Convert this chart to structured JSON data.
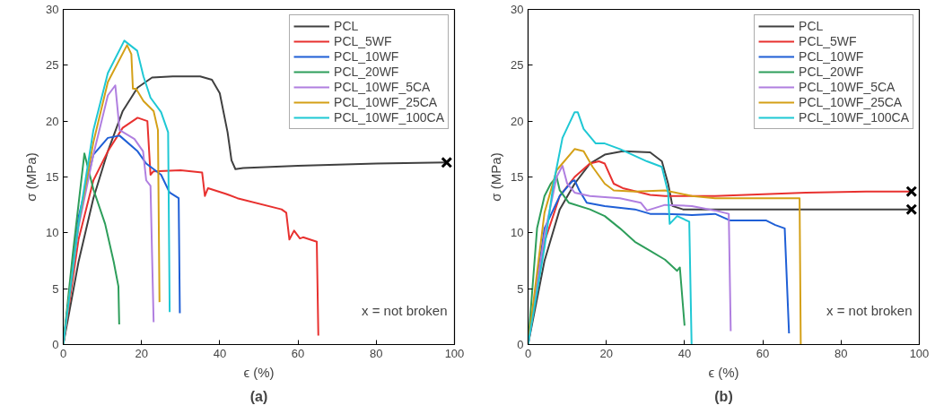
{
  "chart_data": [
    {
      "type": "line",
      "title": "(a)",
      "xlabel": "ϵ (%)",
      "ylabel": "σ (MPa)",
      "xlim": [
        0,
        100
      ],
      "ylim": [
        0,
        30
      ],
      "xticks": [
        0,
        20,
        40,
        60,
        80,
        100
      ],
      "yticks": [
        0,
        5,
        10,
        15,
        20,
        25,
        30
      ],
      "grid": false,
      "legend": "top right",
      "annotations": [
        "x = not broken"
      ],
      "series": [
        {
          "name": "PCL",
          "color": "#404040",
          "x": [
            0,
            3.9,
            7.7,
            11.4,
            15.2,
            19,
            22.7,
            28,
            35,
            38,
            40,
            42,
            43,
            44,
            46,
            60,
            80,
            98
          ],
          "values": [
            0,
            7.4,
            13.1,
            17.3,
            20.9,
            23.0,
            23.9,
            24,
            24,
            23.7,
            22.5,
            19,
            16.5,
            15.7,
            15.8,
            16,
            16.2,
            16.3
          ]
        },
        {
          "name": "PCL_5WF",
          "color": "#e8312f",
          "x": [
            0,
            3.9,
            7.7,
            11.4,
            15.2,
            19,
            21.5,
            22.3,
            23,
            30,
            35.5,
            36.2,
            37,
            41.5,
            44.5,
            55.8,
            57,
            57.8,
            59,
            60.5,
            61.3,
            64.8,
            65.2
          ],
          "values": [
            0,
            9.4,
            14.7,
            17.3,
            19.4,
            20.3,
            20.0,
            15.2,
            15.5,
            15.6,
            15.4,
            13.3,
            14.0,
            13.5,
            13.1,
            12.1,
            11.8,
            9.4,
            10.2,
            9.5,
            9.6,
            9.2,
            0.8
          ]
        },
        {
          "name": "PCL_10WF",
          "color": "#1f5fd6",
          "x": [
            0,
            3.9,
            7.7,
            11.4,
            14.4,
            19,
            21.2,
            25,
            27.2,
            29.5,
            29.8
          ],
          "values": [
            0,
            11.4,
            17,
            18.5,
            18.7,
            17.3,
            16.2,
            15.2,
            13.6,
            13.1,
            2.8
          ]
        },
        {
          "name": "PCL_20WF",
          "color": "#2e9e5b",
          "x": [
            0,
            2.4,
            5.4,
            7.7,
            10.7,
            12.9,
            14.1,
            14.3
          ],
          "values": [
            0,
            8,
            17.1,
            13.9,
            10.8,
            7.4,
            5.2,
            1.8
          ]
        },
        {
          "name": "PCL_10WF_5CA",
          "color": "#b07fe0",
          "x": [
            0,
            3.9,
            7.7,
            11.4,
            13.3,
            14.4,
            18.2,
            20.4,
            21.2,
            22.3,
            22.7,
            23.1
          ],
          "values": [
            0,
            10.5,
            17,
            22.3,
            23.2,
            19.2,
            18.4,
            17.3,
            14.7,
            14.2,
            8.0,
            2.0
          ]
        },
        {
          "name": "PCL_10WF_25CA",
          "color": "#d4a017",
          "x": [
            0,
            3.9,
            7.7,
            11.4,
            16.3,
            17.4,
            17.8,
            18.6,
            20.5,
            23.1,
            24.2,
            24.6
          ],
          "values": [
            0,
            10.8,
            18.1,
            23.5,
            26.8,
            26.0,
            22.9,
            22.9,
            21.8,
            20.9,
            19.2,
            3.8
          ]
        },
        {
          "name": "PCL_10WF_100CA",
          "color": "#1fc8d4",
          "x": [
            0,
            3.9,
            7.7,
            11.4,
            15.6,
            18.9,
            20.5,
            22.3,
            25,
            26.8,
            27.2
          ],
          "values": [
            0,
            10.8,
            19.2,
            24.3,
            27.2,
            26.3,
            24.0,
            22.1,
            20.8,
            19.0,
            2.9
          ]
        },
        {
          "type": "scatter",
          "marker": "cross",
          "color": "#000000",
          "x": [
            98
          ],
          "values": [
            16.3
          ]
        }
      ]
    },
    {
      "type": "line",
      "title": "(b)",
      "xlabel": "ϵ (%)",
      "ylabel": "σ (MPa)",
      "xlim": [
        0,
        100
      ],
      "ylim": [
        0,
        30
      ],
      "xticks": [
        0,
        20,
        40,
        60,
        80,
        100
      ],
      "yticks": [
        0,
        5,
        10,
        15,
        20,
        25,
        30
      ],
      "grid": false,
      "legend": "top right",
      "annotations": [
        "x = not broken"
      ],
      "series": [
        {
          "name": "PCL",
          "color": "#404040",
          "x": [
            0,
            4.2,
            8.1,
            11.9,
            15.8,
            19.6,
            24.2,
            31.2,
            34.2,
            35.8,
            36.9,
            39.6,
            98
          ],
          "values": [
            0,
            7.5,
            12.1,
            14.4,
            16.2,
            17.0,
            17.3,
            17.2,
            16.4,
            14.4,
            12.4,
            12.1,
            12.1
          ]
        },
        {
          "name": "PCL_5WF",
          "color": "#e8312f",
          "x": [
            0,
            4.2,
            8.1,
            11.9,
            15.8,
            18.1,
            19.6,
            21.9,
            24.2,
            31.2,
            35,
            41.9,
            47.8,
            71,
            86.4,
            98
          ],
          "values": [
            0,
            9.2,
            13.3,
            15.0,
            16.2,
            16.4,
            16.2,
            14.4,
            14.0,
            13.4,
            13.3,
            13.3,
            13.3,
            13.6,
            13.7,
            13.7
          ]
        },
        {
          "name": "PCL_10WF",
          "color": "#1f5fd6",
          "x": [
            0,
            4.2,
            8.1,
            11.2,
            11.9,
            13.1,
            15,
            19.6,
            27.3,
            31.2,
            35,
            41.9,
            47.8,
            51.7,
            60.9,
            63.2,
            65.6,
            66.7
          ],
          "values": [
            0,
            10.4,
            13.3,
            14.6,
            14.7,
            13.8,
            12.7,
            12.4,
            12.1,
            11.7,
            11.7,
            11.6,
            11.7,
            11.1,
            11.1,
            10.7,
            10.4,
            1.0
          ]
        },
        {
          "name": "PCL_20WF",
          "color": "#2e9e5b",
          "x": [
            0,
            2.3,
            4.2,
            5.8,
            7.3,
            8.1,
            10.4,
            15.8,
            19.6,
            23.5,
            27.3,
            31.2,
            35,
            38.1,
            38.8,
            40
          ],
          "values": [
            0,
            10.4,
            13.3,
            14.4,
            15.0,
            13.8,
            12.7,
            12.1,
            11.5,
            10.4,
            9.2,
            8.4,
            7.6,
            6.6,
            6.9,
            1.7
          ]
        },
        {
          "name": "PCL_10WF_5CA",
          "color": "#b07fe0",
          "x": [
            0,
            4.2,
            7.3,
            8.8,
            10,
            11.9,
            15.8,
            23.5,
            28.8,
            30.4,
            35,
            41.9,
            47.8,
            51.3,
            51.8
          ],
          "values": [
            0,
            9.8,
            15.0,
            16.0,
            14.4,
            13.6,
            13.3,
            13.1,
            12.7,
            12.0,
            12.5,
            12.4,
            12.0,
            11.7,
            1.2
          ]
        },
        {
          "name": "PCL_10WF_25CA",
          "color": "#d4a017",
          "x": [
            0,
            4.2,
            7.3,
            11.9,
            14.2,
            16.5,
            19.6,
            21.9,
            27.3,
            35,
            41.9,
            47.8,
            69.4,
            69.7
          ],
          "values": [
            0,
            11.8,
            15.6,
            17.5,
            17.3,
            15.9,
            14.4,
            13.8,
            13.7,
            13.8,
            13.3,
            13.1,
            13.1,
            0
          ]
        },
        {
          "name": "PCL_10WF_100CA",
          "color": "#1fc8d4",
          "x": [
            0,
            4.2,
            6.5,
            8.8,
            11.9,
            12.7,
            14.2,
            17.3,
            19.6,
            23.5,
            30.4,
            34.2,
            35.8,
            36.2,
            38.1,
            41.2,
            41.8
          ],
          "values": [
            0,
            8.7,
            14.4,
            18.5,
            20.8,
            20.8,
            19.3,
            18.0,
            18.0,
            17.5,
            16.4,
            15.9,
            13.6,
            10.8,
            11.5,
            11.0,
            0
          ]
        },
        {
          "type": "scatter",
          "marker": "cross",
          "color": "#000000",
          "x": [
            98,
            98
          ],
          "values": [
            13.7,
            12.1
          ]
        }
      ]
    }
  ]
}
